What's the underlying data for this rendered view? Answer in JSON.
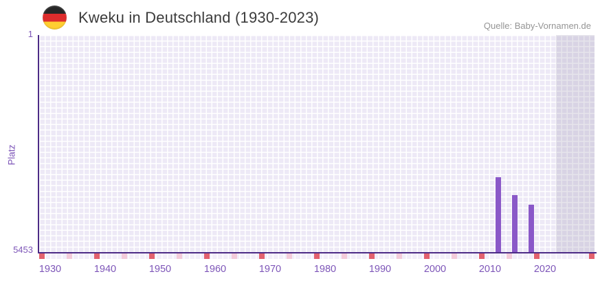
{
  "header": {
    "title": "Kweku in Deutschland (1930-2023)",
    "source": "Quelle: Baby-Vornamen.de",
    "flag_icon": "germany-flag"
  },
  "chart_data": {
    "type": "bar",
    "title": "Kweku in Deutschland (1930-2023)",
    "xlabel": "",
    "ylabel": "Platz",
    "x_axis": {
      "min": 1928,
      "max": 2029,
      "tick_years": [
        1930,
        1940,
        1950,
        1960,
        1970,
        1980,
        1990,
        2000,
        2010,
        2020
      ]
    },
    "y_axis": {
      "min": 1,
      "max": 5453,
      "top_tick_label": "1",
      "bottom_tick_label": "5453",
      "inverted": true,
      "note": "rank 1 is best (top), 5453 worst (bottom)"
    },
    "series": [
      {
        "name": "Platz",
        "points": [
          {
            "year": 2011,
            "rank": 3577
          },
          {
            "year": 2014,
            "rank": 4021
          },
          {
            "year": 2017,
            "rank": 4267
          }
        ]
      }
    ],
    "highlight_band": {
      "from_year": 2022,
      "to_year": 2029
    },
    "below_axis_ticks": {
      "pink_years": [
        1933,
        1943,
        1953,
        1963,
        1973,
        1983,
        1993,
        2003,
        2013
      ],
      "red_years": [
        1938,
        1948,
        1958,
        1968,
        1978,
        1988,
        1998,
        2008,
        2018
      ],
      "edge_red_years": [
        1928,
        2028
      ]
    },
    "legend": null,
    "grid": true,
    "colors": {
      "bar": "#8A58C8",
      "axis": "#4C2B86",
      "grid_cell": "#EDE9F6",
      "grid_cell_dark_band": "#DDD8E9",
      "tick_red": "#E2616E",
      "tick_pink": "#F3CBDA",
      "axis_label_purple": "#7D55B8",
      "title_text": "#3B3B3B",
      "source_text": "#959595"
    }
  }
}
